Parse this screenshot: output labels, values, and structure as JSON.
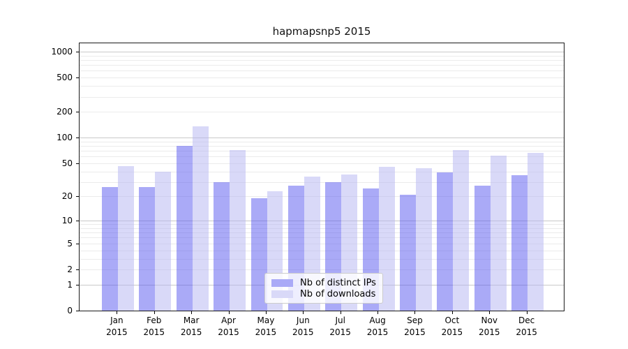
{
  "chart_data": {
    "type": "bar",
    "title": "hapmapsnp5 2015",
    "categories": [
      "Jan",
      "Feb",
      "Mar",
      "Apr",
      "May",
      "Jun",
      "Jul",
      "Aug",
      "Sep",
      "Oct",
      "Nov",
      "Dec"
    ],
    "x_year_label": "2015",
    "series": [
      {
        "name": "Nb of distinct IPs",
        "color": "#aaaaf7",
        "fill": "rgba(85,85,239,0.5)",
        "values": [
          26,
          26,
          80,
          30,
          19,
          27,
          30,
          25,
          21,
          39,
          27,
          36
        ]
      },
      {
        "name": "Nb of downloads",
        "color": "#d9d9f8",
        "fill": "rgba(179,179,241,0.5)",
        "values": [
          46,
          40,
          135,
          72,
          23,
          35,
          37,
          45,
          44,
          72,
          62,
          66
        ]
      }
    ],
    "y_scale": "log1p",
    "ylim": [
      0,
      1250
    ],
    "y_ticks": [
      0,
      1,
      2,
      5,
      10,
      20,
      50,
      100,
      200,
      500,
      1000
    ],
    "y_major_gridlines": [
      1,
      10,
      100,
      1000
    ],
    "y_minor_gridlines": [
      2,
      3,
      4,
      5,
      6,
      7,
      8,
      9,
      20,
      30,
      40,
      50,
      60,
      70,
      80,
      90,
      200,
      300,
      400,
      500,
      600,
      700,
      800,
      900
    ],
    "grid": true,
    "legend_position": "bottom-center"
  },
  "colors": {
    "bar_distinct_ips": "#aaaaf7",
    "bar_downloads": "#d9d9f8",
    "grid_major": "#c9c9c9",
    "grid_minor": "#ebebeb",
    "axis": "#1a1a1a",
    "text": "#000000",
    "background": "#ffffff",
    "legend_border": "#cccccc"
  }
}
